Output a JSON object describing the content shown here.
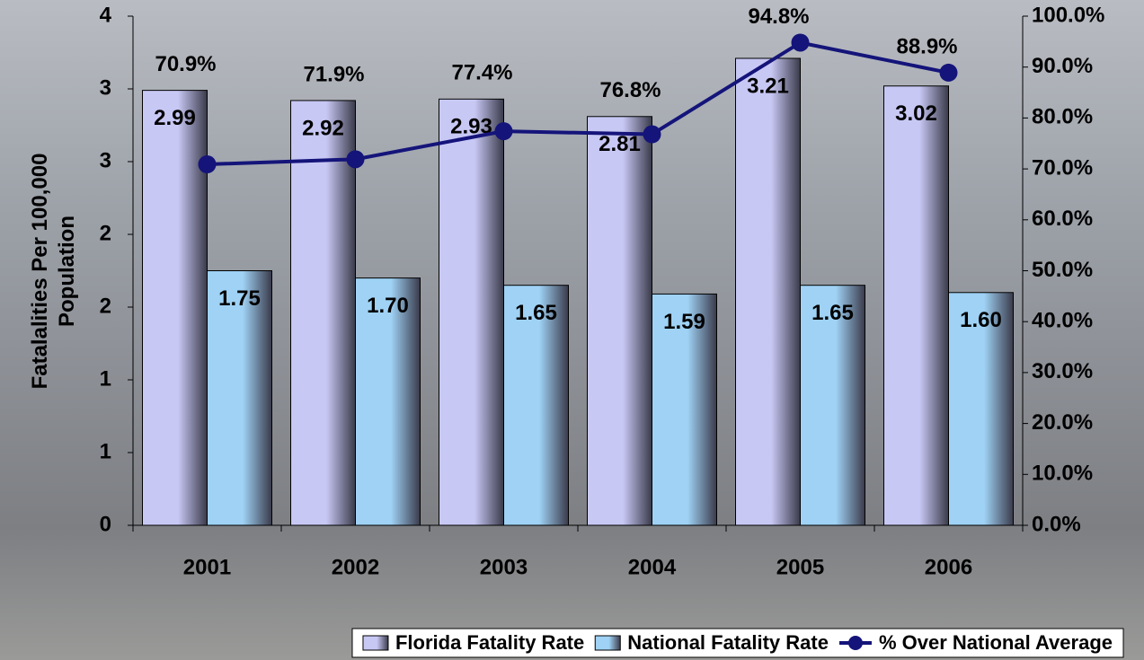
{
  "chart_data": {
    "type": "bar",
    "ylabel": "Fatalalities Per 100,000 Population",
    "categories": [
      "2001",
      "2002",
      "2003",
      "2004",
      "2005",
      "2006"
    ],
    "series": [
      {
        "name": "Florida Fatality Rate",
        "type": "bar",
        "color": "#c8c8f5",
        "values": [
          2.99,
          2.92,
          2.93,
          2.81,
          3.21,
          3.02
        ]
      },
      {
        "name": "National Fatality Rate",
        "type": "bar",
        "color": "#9fd2f5",
        "values": [
          1.75,
          1.7,
          1.65,
          1.59,
          1.65,
          1.6
        ],
        "value_labels": [
          "1.75",
          "1.70",
          "1.65",
          "1.59",
          "1.65",
          "1.60"
        ]
      },
      {
        "name": "% Over National Average",
        "type": "line",
        "axis": "y2",
        "color": "#14147a",
        "values": [
          70.9,
          71.9,
          77.4,
          76.8,
          94.8,
          88.9
        ],
        "value_labels": [
          "70.9%",
          "71.9%",
          "77.4%",
          "76.8%",
          "94.8%",
          "88.9%"
        ]
      }
    ],
    "ylim": [
      0,
      3.5
    ],
    "yticks": [
      0,
      {
        "value": 0.5,
        "label": "1"
      },
      1,
      {
        "value": 1.5,
        "label": "2"
      },
      2,
      {
        "value": 2.5,
        "label": "3"
      },
      3,
      {
        "value": 3.5,
        "label": "4"
      }
    ],
    "y2lim": [
      0,
      100
    ],
    "y2ticks": [
      {
        "value": 0,
        "label": "0.0%"
      },
      {
        "value": 10,
        "label": "10.0%"
      },
      {
        "value": 20,
        "label": "20.0%"
      },
      {
        "value": 30,
        "label": "30.0%"
      },
      {
        "value": 40,
        "label": "40.0%"
      },
      {
        "value": 50,
        "label": "50.0%"
      },
      {
        "value": 60,
        "label": "60.0%"
      },
      {
        "value": 70,
        "label": "70.0%"
      },
      {
        "value": 80,
        "label": "80.0%"
      },
      {
        "value": 90,
        "label": "90.0%"
      },
      {
        "value": 100,
        "label": "100.0%"
      }
    ],
    "legend": "bottom"
  }
}
